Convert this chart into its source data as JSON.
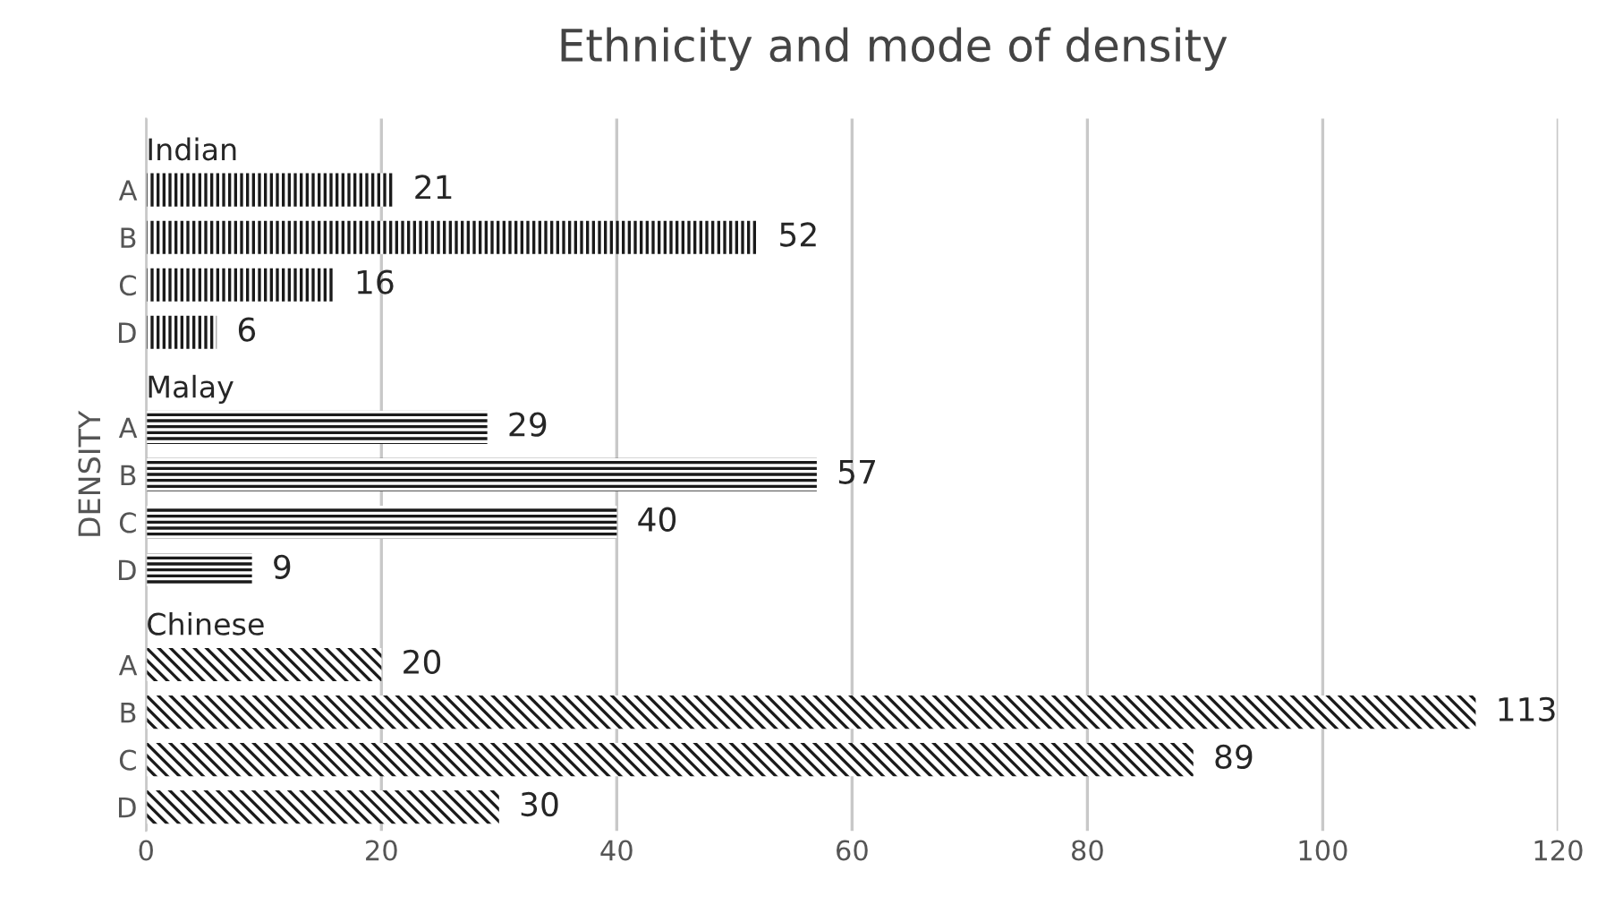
{
  "chart_data": {
    "type": "bar",
    "orientation": "horizontal",
    "title": "Ethnicity and mode of density",
    "ylabel": "DENSITY",
    "categories": [
      null,
      "A",
      "B",
      "C",
      "D",
      null,
      "A",
      "B",
      "C",
      "D",
      null,
      "A",
      "B",
      "C",
      "D"
    ],
    "series": [
      {
        "name": "Indian",
        "color": "#1a1a1a",
        "values": [
          null,
          21,
          52,
          16,
          6,
          null,
          null,
          null,
          null,
          null,
          null,
          null,
          null,
          null,
          null
        ]
      },
      {
        "name": "Malay",
        "color": "#1a1a1a",
        "values": [
          null,
          null,
          null,
          null,
          null,
          null,
          29,
          57,
          40,
          9,
          null,
          null,
          null,
          null,
          null
        ]
      },
      {
        "name": "Chinese",
        "color": "#1a1a1a",
        "values": [
          null,
          null,
          null,
          null,
          null,
          null,
          null,
          null,
          null,
          null,
          null,
          20,
          113,
          89,
          30
        ]
      }
    ],
    "xlim": [
      0,
      120
    ],
    "xticks": [
      0,
      20,
      40,
      60,
      80,
      100,
      120
    ],
    "grid": "x",
    "data_labels": true,
    "legend": false
  }
}
